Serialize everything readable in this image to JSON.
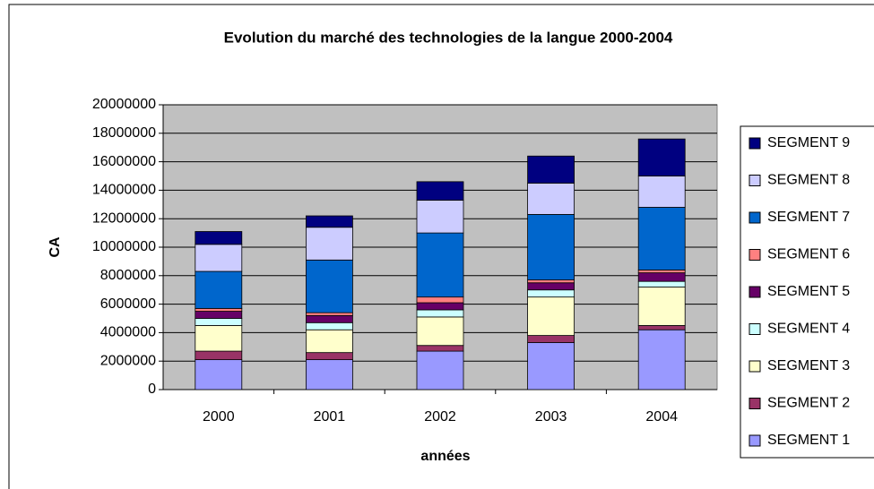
{
  "chart_data": {
    "type": "stacked_bar",
    "title": "Evolution du marché des technologies de la langue  2000-2004",
    "x_label": "années",
    "y_label": "CA",
    "categories": [
      "2000",
      "2001",
      "2002",
      "2003",
      "2004"
    ],
    "series": [
      {
        "name": "SEGMENT 1",
        "color": "#9999ff",
        "values": [
          2100000,
          2100000,
          2700000,
          3300000,
          4200000
        ]
      },
      {
        "name": "SEGMENT 2",
        "color": "#993366",
        "values": [
          600000,
          500000,
          400000,
          500000,
          300000
        ]
      },
      {
        "name": "SEGMENT 3",
        "color": "#ffffcc",
        "values": [
          1800000,
          1600000,
          2000000,
          2700000,
          2700000
        ]
      },
      {
        "name": "SEGMENT 4",
        "color": "#ccffff",
        "values": [
          500000,
          500000,
          500000,
          500000,
          400000
        ]
      },
      {
        "name": "SEGMENT 5",
        "color": "#660066",
        "values": [
          500000,
          500000,
          500000,
          500000,
          600000
        ]
      },
      {
        "name": "SEGMENT 6",
        "color": "#ff8080",
        "values": [
          200000,
          200000,
          400000,
          200000,
          200000
        ]
      },
      {
        "name": "SEGMENT 7",
        "color": "#0066cc",
        "values": [
          2600000,
          3700000,
          4500000,
          4600000,
          4400000
        ]
      },
      {
        "name": "SEGMENT 8",
        "color": "#ccccff",
        "values": [
          1900000,
          2300000,
          2300000,
          2200000,
          2200000
        ]
      },
      {
        "name": "SEGMENT 9",
        "color": "#000080",
        "values": [
          900000,
          800000,
          1300000,
          1900000,
          2600000
        ]
      }
    ],
    "ylim": [
      0,
      20000000
    ],
    "yticks": [
      0,
      2000000,
      4000000,
      6000000,
      8000000,
      10000000,
      12000000,
      14000000,
      16000000,
      18000000,
      20000000
    ],
    "grid": true,
    "legend": "right"
  }
}
